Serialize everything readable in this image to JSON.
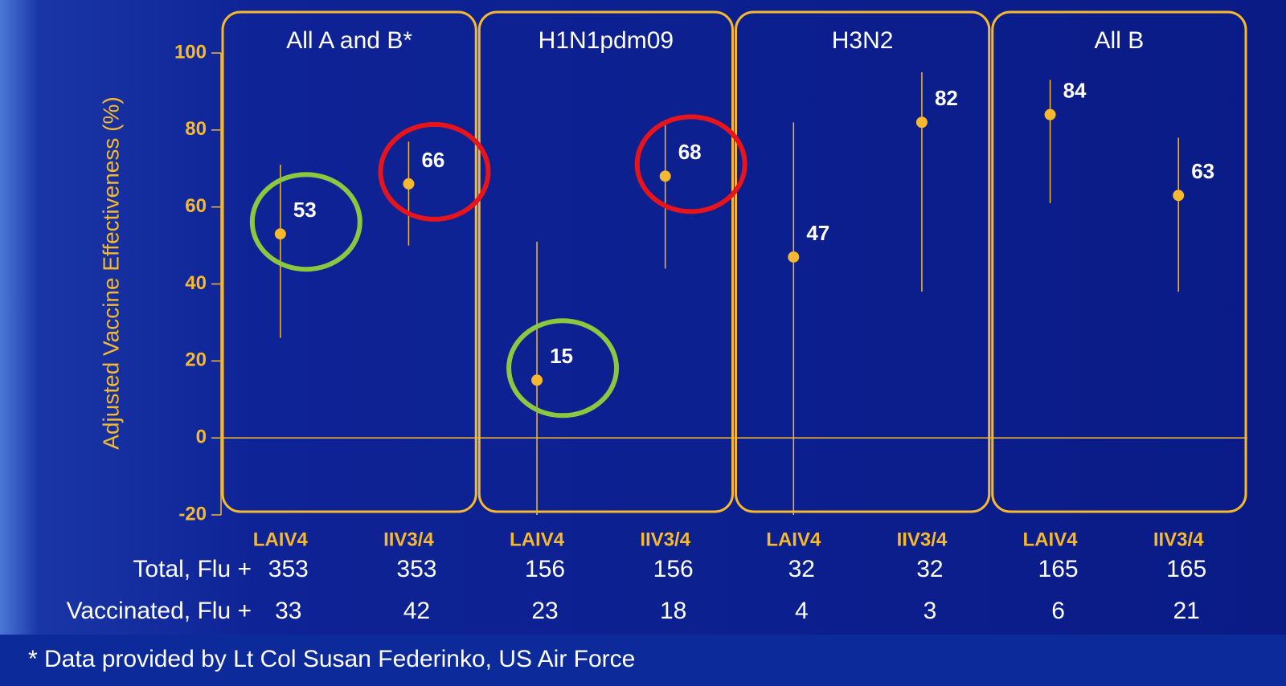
{
  "chart_data": {
    "type": "errorbar",
    "y_label": "Adjusted Vaccine Effectiveness (%)",
    "groups": [
      "All A and B*",
      "H1N1pdm09",
      "H3N2",
      "All B"
    ],
    "categories": [
      "LAIV4",
      "IIV3/4",
      "LAIV4",
      "IIV3/4",
      "LAIV4",
      "IIV3/4",
      "LAIV4",
      "IIV3/4"
    ],
    "values": [
      53,
      66,
      15,
      68,
      47,
      82,
      84,
      63
    ],
    "lower": [
      26,
      50,
      -20,
      44,
      -20,
      38,
      61,
      38
    ],
    "upper": [
      71,
      77,
      51,
      82,
      82,
      95,
      93,
      78
    ],
    "color": "#f5b82e",
    "ylim": [
      -20,
      100
    ],
    "yticks": [
      -20,
      0,
      20,
      40,
      60,
      80,
      100
    ],
    "highlights": [
      {
        "point": 0,
        "color": "#8dc63f"
      },
      {
        "point": 1,
        "color": "#e8141b"
      },
      {
        "point": 2,
        "color": "#8dc63f"
      },
      {
        "point": 3,
        "color": "#e8141b"
      }
    ],
    "table": [
      {
        "label": "Total, Flu +",
        "values": [
          353,
          353,
          156,
          156,
          32,
          32,
          165,
          165
        ]
      },
      {
        "label": "Vaccinated, Flu +",
        "values": [
          33,
          42,
          23,
          18,
          4,
          3,
          6,
          21
        ]
      }
    ],
    "footnote": "* Data provided by Lt Col Susan Federinko, US Air Force"
  }
}
